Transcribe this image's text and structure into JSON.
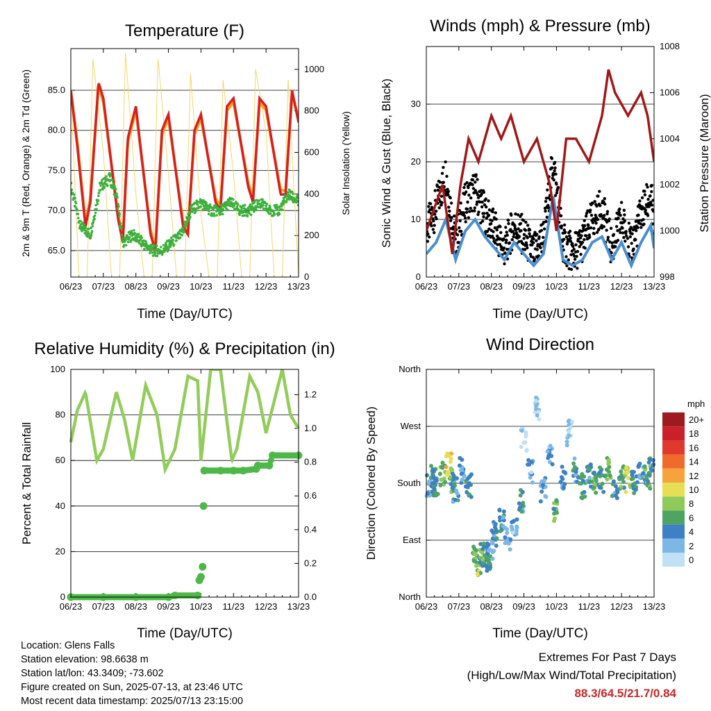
{
  "colors": {
    "temp_red": "#d62020",
    "temp_orange": "#f0a020",
    "dew_green": "#3cb03c",
    "solar_yellow": "#f5d66a",
    "pressure_maroon": "#a01818",
    "wind_blue": "#4a8fd0",
    "gust_black": "#000000",
    "rh_green": "#92cc5a",
    "precip_green": "#4db848",
    "extremes_red": "#c62828"
  },
  "info": {
    "location": "Location: Glens Falls",
    "elevation": "Station elevation: 98.6638 m",
    "latlon": "Station lat/lon: 43.3409; -73.602",
    "created": "Figure created on Sun, 2025-07-13, at 23:46 UTC",
    "recent": "Most recent data timestamp: 2025/07/13 23:15:00"
  },
  "extremes": {
    "title": "Extremes For Past 7 Days",
    "subtitle": "(High/Low/Max Wind/Total Precipitation)",
    "values": "88.3/64.5/21.7/0.84"
  },
  "chart_data": [
    {
      "id": "temperature",
      "type": "line",
      "title": "Temperature (F)",
      "xlabel": "Time (Day/UTC)",
      "ylabel": "2m & 9m T (Red, Orange) & 2m Td (Green)",
      "y2label": "Solar Insolation (Yellow)",
      "xticks": [
        "06/23",
        "07/23",
        "08/23",
        "09/23",
        "10/23",
        "11/23",
        "12/23",
        "13/23"
      ],
      "xlim": [
        0,
        7
      ],
      "ylim": [
        61.7,
        90.2
      ],
      "yticks": [
        "65.0",
        "70.0",
        "75.0",
        "80.0",
        "85.0"
      ],
      "y2lim": [
        0,
        1100
      ],
      "y2ticks": [
        "0",
        "200",
        "400",
        "600",
        "800",
        "1000"
      ],
      "grid": true,
      "series": [
        {
          "name": "2m T",
          "axis": "left",
          "x": [
            0,
            0.2,
            0.45,
            0.6,
            0.85,
            1.0,
            1.45,
            1.6,
            1.75,
            2.0,
            2.45,
            2.6,
            2.8,
            3.0,
            3.45,
            3.6,
            3.8,
            4.0,
            4.45,
            4.6,
            4.8,
            5.0,
            5.45,
            5.6,
            5.8,
            6.0,
            6.45,
            6.6,
            6.8,
            7.0
          ],
          "values": [
            85,
            78,
            68,
            71,
            86,
            84,
            69,
            66,
            79,
            83,
            67,
            65,
            80,
            82,
            68,
            67,
            80,
            82,
            71,
            70,
            83,
            84,
            73,
            71,
            84,
            83,
            72,
            72,
            85,
            81
          ]
        },
        {
          "name": "9m T",
          "axis": "left",
          "x": [
            0,
            0.2,
            0.45,
            0.6,
            0.85,
            1.0,
            1.45,
            1.6,
            1.75,
            2.0,
            2.45,
            2.6,
            2.8,
            3.0,
            3.45,
            3.6,
            3.8,
            4.0,
            4.45,
            4.6,
            4.8,
            5.0,
            5.45,
            5.6,
            5.8,
            6.0,
            6.45,
            6.6,
            6.8,
            7.0
          ],
          "values": [
            85,
            78.5,
            68.5,
            71.5,
            85.5,
            83.5,
            69.5,
            66.5,
            78.5,
            82.5,
            67.5,
            65.5,
            79.5,
            81.5,
            68.5,
            67.5,
            79.5,
            81.5,
            71.5,
            70.5,
            82.5,
            83.5,
            73.5,
            71.5,
            83.5,
            82.5,
            72.5,
            72.5,
            84.5,
            81.5
          ]
        },
        {
          "name": "2m Td",
          "axis": "left",
          "x": [
            0,
            0.3,
            0.6,
            0.9,
            1.2,
            1.4,
            1.6,
            1.9,
            2.2,
            2.5,
            2.8,
            3.1,
            3.4,
            3.7,
            4.0,
            4.3,
            4.6,
            4.9,
            5.2,
            5.5,
            5.8,
            6.1,
            6.4,
            6.7,
            7.0
          ],
          "values": [
            73,
            68,
            67,
            73,
            74,
            72,
            66,
            67,
            66,
            65,
            65,
            66,
            67,
            70,
            71,
            70,
            70,
            71,
            70,
            70,
            71,
            70,
            70,
            72,
            71
          ]
        },
        {
          "name": "Solar Insolation",
          "axis": "right",
          "x": [
            0,
            0.25,
            0.5,
            0.68,
            1.0,
            1.25,
            1.5,
            1.68,
            2.0,
            2.25,
            2.5,
            2.68,
            3.0,
            3.25,
            3.5,
            3.68,
            4.0,
            4.25,
            4.5,
            4.68,
            5.0,
            5.25,
            5.5,
            5.68,
            6.0,
            6.25,
            6.5,
            6.68,
            7.0
          ],
          "values": [
            900,
            0,
            0,
            1050,
            600,
            0,
            0,
            1080,
            400,
            0,
            0,
            1050,
            500,
            0,
            0,
            980,
            300,
            0,
            0,
            950,
            500,
            0,
            0,
            1000,
            700,
            0,
            0,
            950,
            0
          ]
        }
      ]
    },
    {
      "id": "winds",
      "type": "line",
      "title": "Winds (mph) & Pressure (mb)",
      "xlabel": "Time (Day/UTC)",
      "ylabel": "Sonic Wind & Gust (Blue, Black)",
      "y2label": "Station Pressure (Maroon)",
      "xticks": [
        "06/23",
        "07/23",
        "08/23",
        "09/23",
        "10/23",
        "11/23",
        "12/23",
        "13/23"
      ],
      "xlim": [
        0,
        7
      ],
      "ylim": [
        0,
        40
      ],
      "yticks": [
        "0",
        "10",
        "20",
        "30"
      ],
      "y2lim": [
        998,
        1008
      ],
      "y2ticks": [
        "998",
        "1000",
        "1002",
        "1004",
        "1006",
        "1008"
      ],
      "grid": true,
      "series": [
        {
          "name": "Sonic Wind",
          "axis": "left",
          "x": [
            0,
            0.3,
            0.6,
            0.9,
            1.2,
            1.5,
            1.8,
            2.1,
            2.4,
            2.7,
            3.0,
            3.3,
            3.6,
            3.9,
            4.2,
            4.5,
            4.8,
            5.1,
            5.4,
            5.7,
            6.0,
            6.3,
            6.6,
            6.9,
            7.0
          ],
          "values": [
            4,
            6,
            10,
            3,
            8,
            10,
            7,
            5,
            3,
            6,
            4,
            2,
            4,
            14,
            3,
            2,
            3,
            6,
            7,
            3,
            6,
            2,
            6,
            9,
            5
          ]
        },
        {
          "name": "Gust",
          "axis": "left",
          "x": [
            0,
            0.3,
            0.6,
            0.9,
            1.2,
            1.5,
            1.8,
            2.1,
            2.4,
            2.7,
            3.0,
            3.3,
            3.6,
            3.9,
            4.2,
            4.5,
            4.8,
            5.1,
            5.4,
            5.7,
            6.0,
            6.3,
            6.6,
            6.9,
            7.0
          ],
          "values": [
            8,
            12,
            18,
            6,
            13,
            15,
            11,
            8,
            5,
            9,
            7,
            4,
            7,
            20,
            6,
            4,
            6,
            10,
            12,
            5,
            10,
            5,
            11,
            14,
            9
          ]
        },
        {
          "name": "Station Pressure",
          "axis": "right",
          "x": [
            0,
            0.5,
            0.8,
            1.05,
            1.3,
            1.6,
            2.0,
            2.3,
            2.6,
            3.0,
            3.4,
            3.8,
            4.0,
            4.3,
            4.6,
            5.0,
            5.4,
            5.6,
            5.8,
            6.2,
            6.6,
            6.8,
            7.0
          ],
          "values": [
            1000,
            1002,
            999,
            1002,
            1004,
            1003,
            1005,
            1004,
            1005,
            1003,
            1004,
            1002,
            1000,
            1004,
            1004,
            1003,
            1005,
            1007,
            1006,
            1005,
            1006,
            1005,
            1003
          ]
        }
      ]
    },
    {
      "id": "humidity",
      "type": "line",
      "title": "Relative Humidity (%) & Precipitation (in)",
      "xlabel": "Time (Day/UTC)",
      "ylabel": "Percent & Total Rainfall",
      "xticks": [
        "06/23",
        "07/23",
        "08/23",
        "09/23",
        "10/23",
        "11/23",
        "12/23",
        "13/23"
      ],
      "xlim": [
        0,
        7
      ],
      "ylim": [
        0,
        100
      ],
      "yticks": [
        "0",
        "20",
        "40",
        "60",
        "80",
        "100"
      ],
      "y2lim": [
        0,
        1.35
      ],
      "y2ticks": [
        "0.0",
        "0.2",
        "0.4",
        "0.6",
        "0.8",
        "1.0",
        "1.2"
      ],
      "grid": true,
      "series": [
        {
          "name": "Relative Humidity",
          "axis": "left",
          "x": [
            0,
            0.2,
            0.45,
            0.8,
            1.0,
            1.4,
            1.65,
            1.9,
            2.3,
            2.65,
            2.9,
            3.2,
            3.6,
            3.9,
            4.0,
            4.3,
            4.6,
            4.95,
            5.1,
            5.5,
            5.75,
            6.0,
            6.5,
            6.75,
            7.0
          ],
          "values": [
            68,
            82,
            90,
            60,
            65,
            90,
            78,
            60,
            93,
            80,
            56,
            65,
            97,
            95,
            60,
            100,
            100,
            60,
            65,
            97,
            90,
            72,
            100,
            80,
            74
          ]
        },
        {
          "name": "Total Precipitation",
          "axis": "right",
          "x": [
            0,
            1,
            2,
            3,
            3.2,
            3.9,
            3.95,
            4.0,
            4.05,
            4.08,
            4.1,
            4.6,
            5.0,
            5.3,
            5.7,
            5.75,
            6.1,
            6.2,
            7.0
          ],
          "values": [
            0,
            0,
            0,
            0,
            0.01,
            0.01,
            0.1,
            0.12,
            0.18,
            0.54,
            0.75,
            0.75,
            0.75,
            0.75,
            0.76,
            0.78,
            0.78,
            0.84,
            0.84
          ]
        }
      ]
    },
    {
      "id": "wind_direction",
      "type": "scatter",
      "title": "Wind Direction",
      "xlabel": "Time (Day/UTC)",
      "ylabel": "Direction (Colored By Speed)",
      "xticks": [
        "06/23",
        "07/23",
        "08/23",
        "09/23",
        "10/23",
        "11/23",
        "12/23",
        "13/23"
      ],
      "xlim": [
        0,
        7
      ],
      "ylim": [
        0,
        360
      ],
      "yticks": [
        "North",
        "East",
        "South",
        "West",
        "North"
      ],
      "grid": true,
      "legend": {
        "title": "mph",
        "labels": [
          "20+",
          "18",
          "16",
          "14",
          "12",
          "10",
          "8",
          "6",
          "4",
          "2",
          "0"
        ],
        "colors": [
          "#9b1b1e",
          "#c9202a",
          "#e0382d",
          "#f06a2c",
          "#f6a33e",
          "#e6df55",
          "#8ec95c",
          "#4ea463",
          "#3d80c4",
          "#7cb7e5",
          "#bfe0f5"
        ],
        "placement": "right"
      },
      "series": [
        {
          "name": "direction",
          "x": [
            0.1,
            0.2,
            0.3,
            0.5,
            0.7,
            0.8,
            0.9,
            1.1,
            1.3,
            1.5,
            1.6,
            1.7,
            1.8,
            1.9,
            2.0,
            2.1,
            2.3,
            2.5,
            2.7,
            2.9,
            3.0,
            3.2,
            3.4,
            3.6,
            3.8,
            4.0,
            4.2,
            4.4,
            4.6,
            4.8,
            5.0,
            5.2,
            5.4,
            5.6,
            5.8,
            6.0,
            6.2,
            6.4,
            6.6,
            6.8,
            6.9
          ],
          "values": [
            180,
            190,
            175,
            195,
            210,
            185,
            170,
            200,
            175,
            60,
            55,
            65,
            70,
            50,
            80,
            100,
            120,
            90,
            110,
            150,
            250,
            200,
            300,
            170,
            220,
            140,
            190,
            260,
            200,
            175,
            190,
            180,
            185,
            200,
            175,
            190,
            185,
            180,
            195,
            190,
            200
          ],
          "speeds": [
            3,
            4,
            5,
            7,
            10,
            6,
            4,
            3,
            5,
            7,
            8,
            6,
            6,
            5,
            3,
            4,
            4,
            3,
            2,
            4,
            1,
            2,
            1,
            3,
            2,
            6,
            3,
            1,
            4,
            5,
            4,
            6,
            5,
            7,
            4,
            6,
            9,
            5,
            4,
            6,
            5
          ]
        }
      ]
    }
  ]
}
